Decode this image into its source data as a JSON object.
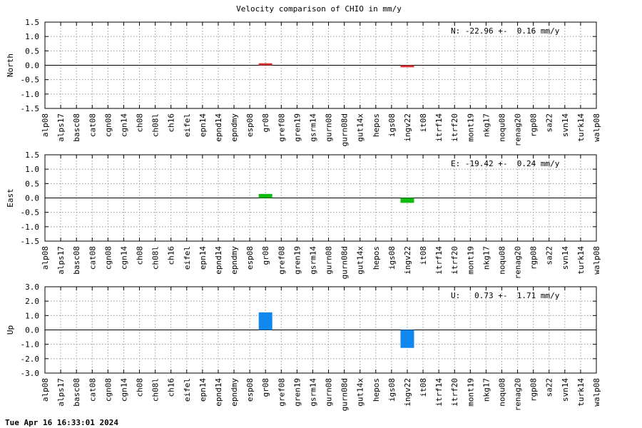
{
  "chart_data": {
    "title": "Velocity comparison of CHIO in mm/y",
    "categories": [
      "alp08",
      "alps17",
      "basc08",
      "cat08",
      "cgn08",
      "cgn14",
      "ch08",
      "ch08l",
      "ch16",
      "eifel",
      "epn14",
      "epnd14",
      "epndmy",
      "esp08",
      "gr08",
      "gref08",
      "gren19",
      "gsrm14",
      "gurn08",
      "gurn08d",
      "gut14x",
      "hepos",
      "igs08",
      "ingv22",
      "it08",
      "itrf14",
      "itrf20",
      "mont19",
      "nkg17",
      "noqu08",
      "renag20",
      "rgp08",
      "sa22",
      "svn14",
      "turk14",
      "walp08"
    ],
    "panels": [
      {
        "type": "bar",
        "ylabel": "North",
        "ylim": [
          -1.5,
          1.5
        ],
        "yticks": [
          -1.5,
          -1.0,
          -0.5,
          0.0,
          0.5,
          1.0,
          1.5
        ],
        "ytick_labels": [
          "-1.5",
          "-1.0",
          "-0.5",
          "0.0",
          "0.5",
          "1.0",
          "1.5"
        ],
        "annotation": "N: -22.96 +-  0.16 mm/y",
        "color": "#dd3333",
        "grid": true,
        "values": {
          "gr08": 0.07,
          "ingv22": -0.07
        }
      },
      {
        "type": "bar",
        "ylabel": "East",
        "ylim": [
          -1.5,
          1.5
        ],
        "yticks": [
          -1.5,
          -1.0,
          -0.5,
          0.0,
          0.5,
          1.0,
          1.5
        ],
        "ytick_labels": [
          "-1.5",
          "-1.0",
          "-0.5",
          "0.0",
          "0.5",
          "1.0",
          "1.5"
        ],
        "annotation": "E: -19.42 +-  0.24 mm/y",
        "color": "#11bb11",
        "grid": true,
        "values": {
          "gr08": 0.14,
          "ingv22": -0.17
        }
      },
      {
        "type": "bar",
        "ylabel": "Up",
        "ylim": [
          -3.0,
          3.0
        ],
        "yticks": [
          -3.0,
          -2.0,
          -1.0,
          0.0,
          1.0,
          2.0,
          3.0
        ],
        "ytick_labels": [
          "-3.0",
          "-2.0",
          "-1.0",
          "0.0",
          "1.0",
          "2.0",
          "3.0"
        ],
        "annotation": "U:   0.73 +-  1.71 mm/y",
        "color": "#1188ee",
        "grid": true,
        "values": {
          "gr08": 1.22,
          "ingv22": -1.25
        }
      }
    ]
  },
  "footer": {
    "timestamp": "Tue Apr 16 16:33:01 2024"
  }
}
